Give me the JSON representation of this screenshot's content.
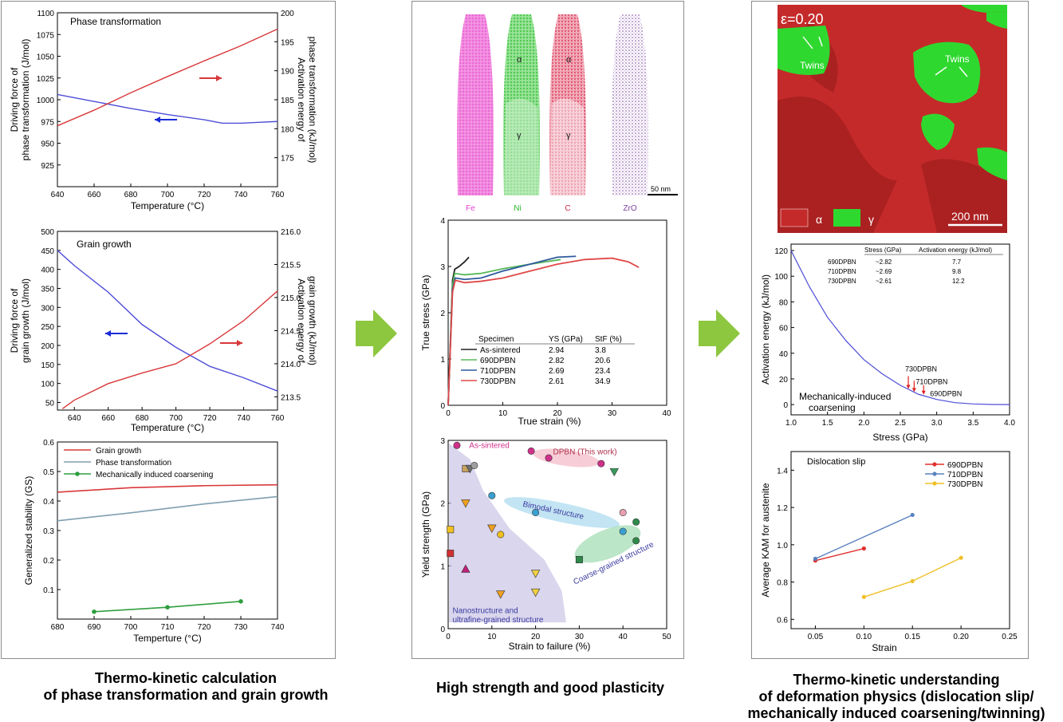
{
  "captions": {
    "left": [
      "Thermo-kinetic calculation",
      "of phase transformation and grain growth"
    ],
    "middle": [
      "High strength and good plasticity"
    ],
    "right": [
      "Thermo-kinetic understanding",
      "of deformation physics (dislocation slip/",
      "mechanically induced coarsening/twinning)"
    ]
  },
  "colors": {
    "red": "#d9383a",
    "blue": "#4d4dd8",
    "green": "#2e9e3e",
    "arrow": "#8dc63f",
    "gray": "#7f9fb0"
  },
  "apt": {
    "labels": [
      "Fe",
      "Ni",
      "C",
      "ZrO"
    ],
    "label_colors": [
      "#e23fd0",
      "#28b828",
      "#d42a4a",
      "#7b3fa0"
    ],
    "phase_alpha": "α",
    "phase_gamma": "γ",
    "scale": "50 nm"
  },
  "ebsd": {
    "strain": "ε=0.20",
    "twins": "Twins",
    "legend_alpha": "α",
    "legend_gamma": "γ",
    "scale": "200 nm"
  },
  "chart_data": [
    {
      "id": "phase_transformation",
      "type": "line",
      "title": "Phase transformation",
      "xlabel": "Temperature (°C)",
      "ylabel": [
        "Driving force of",
        "phase transformation (J/mol)"
      ],
      "y2label": [
        "Activation energy of",
        "phase transformation (kJ/mol)"
      ],
      "xlim": [
        640,
        760
      ],
      "ylim": [
        900,
        1100
      ],
      "y2lim": [
        170,
        200
      ],
      "xticks": [
        "640",
        "660",
        "680",
        "700",
        "720",
        "740",
        "760"
      ],
      "yticks": [
        "925",
        "950",
        "975",
        "1000",
        "1025",
        "1050",
        "1075",
        "1100"
      ],
      "y2ticks": [
        "175",
        "180",
        "185",
        "190",
        "195",
        "200"
      ],
      "series": [
        {
          "axis": "left",
          "color": "#4d4dd8",
          "x": [
            640,
            660,
            680,
            700,
            720,
            730,
            740,
            750,
            760
          ],
          "y": [
            1006,
            998,
            990,
            983,
            977,
            973,
            973,
            974,
            975
          ]
        },
        {
          "axis": "right",
          "color": "#d9383a",
          "x": [
            640,
            660,
            680,
            700,
            720,
            740,
            760
          ],
          "y": [
            180.5,
            183.2,
            186.2,
            189.0,
            191.7,
            194.3,
            197.2
          ]
        }
      ]
    },
    {
      "id": "grain_growth",
      "type": "line",
      "title": "Grain growth",
      "xlabel": "Temperature (°C)",
      "ylabel": [
        "Driving force of",
        "grain growth (J/mol)"
      ],
      "y2label": [
        "Activation energy of",
        "grain growth (kJ/mol)"
      ],
      "xlim": [
        630,
        760
      ],
      "ylim": [
        30,
        500
      ],
      "y2lim": [
        213.3,
        216.0
      ],
      "xticks": [
        "640",
        "660",
        "680",
        "700",
        "720",
        "740",
        "760"
      ],
      "yticks": [
        "50",
        "100",
        "150",
        "200",
        "250",
        "300",
        "350",
        "400",
        "450",
        "500"
      ],
      "y2ticks": [
        "213.5",
        "214.0",
        "214.5",
        "215.0",
        "215.5",
        "216.0"
      ],
      "series": [
        {
          "axis": "left",
          "color": "#4d4dd8",
          "x": [
            630,
            640,
            660,
            680,
            700,
            720,
            740,
            760
          ],
          "y": [
            450,
            410,
            340,
            255,
            195,
            145,
            115,
            80
          ]
        },
        {
          "axis": "right",
          "color": "#d9383a",
          "x": [
            633,
            640,
            660,
            680,
            700,
            720,
            740,
            760
          ],
          "y": [
            213.32,
            213.45,
            213.7,
            213.86,
            214.0,
            214.3,
            214.65,
            215.1
          ]
        }
      ]
    },
    {
      "id": "generalized_stability",
      "type": "line",
      "xlabel": "Temperture (°C)",
      "ylabel": "Generalized stability (GS)",
      "xlim": [
        680,
        740
      ],
      "ylim": [
        0,
        0.6
      ],
      "xticks": [
        "680",
        "690",
        "700",
        "710",
        "720",
        "730",
        "740"
      ],
      "yticks": [
        "0.1",
        "0.2",
        "0.3",
        "0.4",
        "0.5",
        "0.6"
      ],
      "series": [
        {
          "name": "Grain growth",
          "color": "#d9383a",
          "x": [
            680,
            700,
            720,
            740
          ],
          "y": [
            0.43,
            0.445,
            0.452,
            0.455
          ]
        },
        {
          "name": "Phase transformation",
          "color": "#7f9fb0",
          "x": [
            680,
            700,
            720,
            740
          ],
          "y": [
            0.333,
            0.36,
            0.39,
            0.415
          ]
        },
        {
          "name": "Mechanically induced coarsening",
          "color": "#2e9e3e",
          "x": [
            690,
            710,
            730
          ],
          "y": [
            0.025,
            0.04,
            0.06
          ]
        }
      ]
    },
    {
      "id": "true_stress_strain",
      "type": "line",
      "xlabel": "True strain (%)",
      "ylabel": "True stress (GPa)",
      "xlim": [
        0,
        40
      ],
      "ylim": [
        0,
        4
      ],
      "xticks": [
        "0",
        "10",
        "20",
        "30",
        "40"
      ],
      "yticks": [
        "0",
        "1",
        "2",
        "3",
        "4"
      ],
      "table": {
        "headers": [
          "Specimen",
          "YS (GPa)",
          "StF (%)"
        ],
        "rows": [
          [
            "As-sintered",
            "2.94",
            "3.8"
          ],
          [
            "690DPBN",
            "2.82",
            "20.6"
          ],
          [
            "710DPBN",
            "2.69",
            "23.4"
          ],
          [
            "730DPBN",
            "2.61",
            "34.9"
          ]
        ]
      },
      "series": [
        {
          "name": "As-sintered",
          "color": "#222222",
          "x": [
            0,
            0.8,
            1.2,
            2.0,
            3.0,
            3.8
          ],
          "y": [
            0,
            2.7,
            2.94,
            3.0,
            3.1,
            3.2
          ]
        },
        {
          "name": "690DPBN",
          "color": "#58b858",
          "x": [
            0,
            0.8,
            1.2,
            3,
            6,
            10,
            15,
            20.6
          ],
          "y": [
            0,
            2.6,
            2.85,
            2.82,
            2.85,
            2.95,
            3.05,
            3.15
          ]
        },
        {
          "name": "710DPBN",
          "color": "#2f5a9e",
          "x": [
            0,
            0.8,
            1.3,
            3,
            6,
            10,
            15,
            20,
            23.4
          ],
          "y": [
            0,
            2.5,
            2.75,
            2.72,
            2.75,
            2.9,
            3.05,
            3.2,
            3.22
          ]
        },
        {
          "name": "730DPBN",
          "color": "#e04848",
          "x": [
            0,
            0.8,
            1.3,
            3,
            6,
            10,
            15,
            20,
            25,
            30,
            33,
            34.9
          ],
          "y": [
            0,
            2.45,
            2.7,
            2.65,
            2.68,
            2.75,
            2.9,
            3.05,
            3.15,
            3.18,
            3.1,
            2.98
          ]
        }
      ]
    },
    {
      "id": "yield_vs_strain",
      "type": "scatter",
      "xlabel": "Strain to failure (%)",
      "ylabel": "Yield strength (GPa)",
      "xlim": [
        0,
        50
      ],
      "ylim": [
        0,
        3
      ],
      "xticks": [
        "0",
        "10",
        "20",
        "30",
        "40",
        "50"
      ],
      "yticks": [
        "0",
        "1",
        "2",
        "3"
      ],
      "annotations": [
        "As-sintered",
        "DPBN (This work)",
        "Bimodal structure",
        "Coarse-grained structure",
        "Nanostructure and",
        "ultrafine-grained structure"
      ],
      "points": [
        {
          "x": 2,
          "y": 2.92,
          "shape": "circle",
          "color": "#d0308a"
        },
        {
          "x": 19,
          "y": 2.83,
          "shape": "circle",
          "color": "#d0308a"
        },
        {
          "x": 23,
          "y": 2.72,
          "shape": "circle",
          "color": "#d0308a"
        },
        {
          "x": 35,
          "y": 2.63,
          "shape": "circle",
          "color": "#d0308a"
        },
        {
          "x": 38,
          "y": 2.5,
          "shape": "down",
          "color": "#3a9a5a"
        },
        {
          "x": 4,
          "y": 2.55,
          "shape": "square",
          "color": "#c8a060"
        },
        {
          "x": 5,
          "y": 2.55,
          "shape": "down",
          "color": "#707070"
        },
        {
          "x": 6,
          "y": 2.6,
          "shape": "circle",
          "color": "#a0a0a0"
        },
        {
          "x": 4,
          "y": 2.0,
          "shape": "down",
          "color": "#f0a020"
        },
        {
          "x": 10,
          "y": 2.12,
          "shape": "circle",
          "color": "#3aa0d0"
        },
        {
          "x": 20,
          "y": 1.85,
          "shape": "circle",
          "color": "#3aa0d0"
        },
        {
          "x": 40,
          "y": 1.85,
          "shape": "circle",
          "color": "#e8a0b0"
        },
        {
          "x": 40,
          "y": 1.55,
          "shape": "circle",
          "color": "#3aa0d0"
        },
        {
          "x": 43,
          "y": 1.7,
          "shape": "circle",
          "color": "#2e8a4a"
        },
        {
          "x": 43,
          "y": 1.4,
          "shape": "circle",
          "color": "#2e8a4a"
        },
        {
          "x": 30,
          "y": 1.1,
          "shape": "square",
          "color": "#2e8a4a"
        },
        {
          "x": 0.5,
          "y": 1.58,
          "shape": "square",
          "color": "#f0c020"
        },
        {
          "x": 0.5,
          "y": 1.2,
          "shape": "square",
          "color": "#d03030"
        },
        {
          "x": 4,
          "y": 0.95,
          "shape": "triangle",
          "color": "#c0207a"
        },
        {
          "x": 10,
          "y": 1.6,
          "shape": "down",
          "color": "#f0a020"
        },
        {
          "x": 12,
          "y": 1.5,
          "shape": "circle",
          "color": "#f0c020"
        },
        {
          "x": 12,
          "y": 0.55,
          "shape": "down",
          "color": "#f0a020"
        },
        {
          "x": 20,
          "y": 0.88,
          "shape": "down",
          "color": "#f0d040"
        },
        {
          "x": 20,
          "y": 0.58,
          "shape": "down",
          "color": "#f0d040"
        }
      ]
    },
    {
      "id": "activation_energy_stress",
      "type": "line",
      "xlabel": "Stress (GPa)",
      "ylabel": "Activation energy (kJ/mol)",
      "xlim": [
        1.0,
        4.0
      ],
      "ylim": [
        -8,
        125
      ],
      "xticks": [
        "1.0",
        "1.5",
        "2.0",
        "2.5",
        "3.0",
        "3.5",
        "4.0"
      ],
      "yticks": [
        "0",
        "20",
        "40",
        "60",
        "80",
        "100",
        "120"
      ],
      "annotation": [
        "Mechanically-induced",
        "coarsening"
      ],
      "markers": [
        "730DPBN",
        "710DPBN",
        "690DPBN"
      ],
      "table": {
        "headers": [
          "",
          "Stress (GPa)",
          "Activation energy (kJ/mol)"
        ],
        "rows": [
          [
            "690DPBN",
            "~2.82",
            "7.7"
          ],
          [
            "710DPBN",
            "~2.69",
            "9.8"
          ],
          [
            "730DPBN",
            "~2.61",
            "12.2"
          ]
        ]
      },
      "series": [
        {
          "color": "#4d4dd8",
          "x": [
            1.0,
            1.25,
            1.5,
            1.75,
            2.0,
            2.25,
            2.5,
            2.75,
            3.0,
            3.25,
            3.5,
            3.75,
            4.0
          ],
          "y": [
            120,
            92,
            68,
            50,
            35,
            24,
            15,
            8,
            4,
            1.5,
            0.5,
            0.1,
            0
          ]
        }
      ]
    },
    {
      "id": "kam_strain",
      "type": "line",
      "title": "Dislocation slip",
      "xlabel": "Strain",
      "ylabel": "Average KAM for austenite",
      "xlim": [
        0.025,
        0.25
      ],
      "ylim": [
        0.55,
        1.5
      ],
      "xticks": [
        "0.05",
        "0.10",
        "0.15",
        "0.20",
        "0.25"
      ],
      "yticks": [
        "0.6",
        "0.8",
        "1.0",
        "1.2",
        "1.4"
      ],
      "series": [
        {
          "name": "690DPBN",
          "color": "#e0302e",
          "x": [
            0.05,
            0.1
          ],
          "y": [
            0.915,
            0.98
          ]
        },
        {
          "name": "710DPBN",
          "color": "#5a82c0",
          "x": [
            0.05,
            0.15
          ],
          "y": [
            0.925,
            1.16
          ]
        },
        {
          "name": "730DPBN",
          "color": "#f0c028",
          "x": [
            0.1,
            0.15,
            0.2
          ],
          "y": [
            0.72,
            0.805,
            0.93
          ]
        }
      ]
    }
  ]
}
